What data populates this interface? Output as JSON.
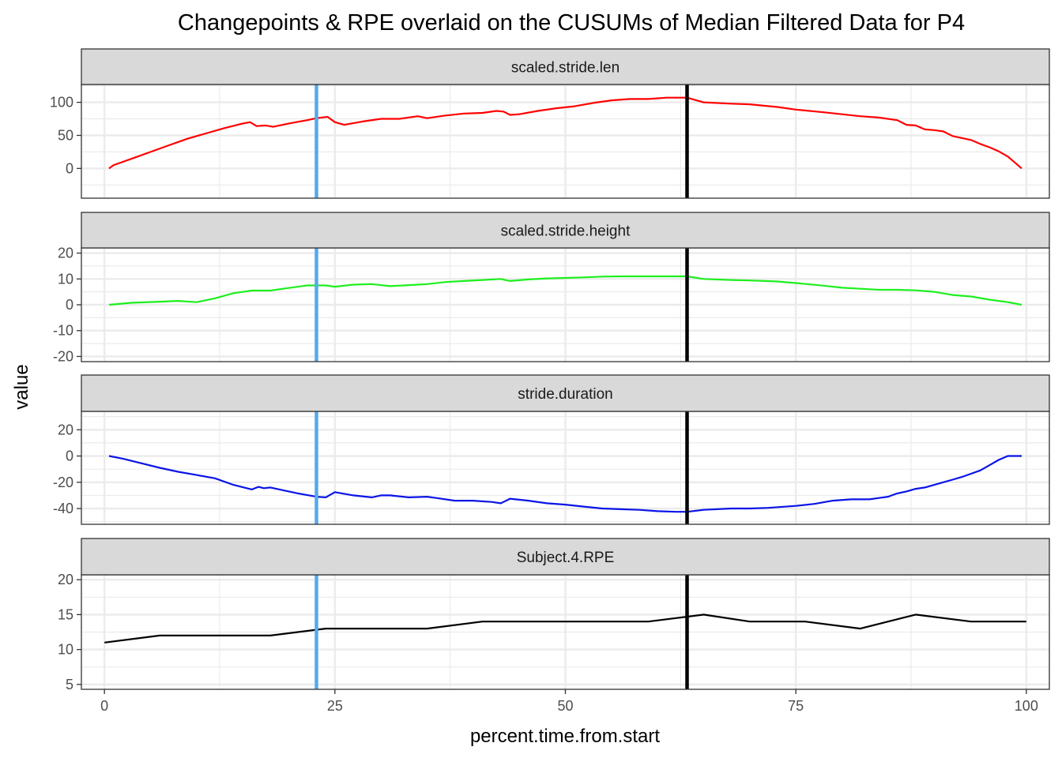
{
  "chart_data": {
    "type": "line",
    "title": "Changepoints & RPE overlaid on the CUSUMs of Median Filtered Data for P4",
    "xlabel": "percent.time.from.start",
    "ylabel": "value",
    "xlim": [
      -2.5,
      102.5
    ],
    "x_ticks": [
      0,
      25,
      50,
      75,
      100
    ],
    "x_tick_labels": [
      "0",
      "25",
      "50",
      "75",
      "100"
    ],
    "grid": true,
    "changepoints": [
      {
        "x": 23.0,
        "color": "#56a9ee"
      },
      {
        "x": 63.2,
        "color": "#000000"
      }
    ],
    "panels": [
      {
        "strip": "scaled.stride.len",
        "color": "#ff0000",
        "ylim": [
          -45,
          127
        ],
        "y_ticks": [
          0,
          50,
          100
        ],
        "y_tick_labels": [
          "0",
          "50",
          "100"
        ],
        "x": [
          0.5,
          1,
          3,
          5,
          7,
          9,
          11,
          13,
          15,
          15.8,
          16.5,
          17.5,
          18.3,
          20,
          22,
          23,
          24.2,
          25,
          26,
          28,
          30,
          32,
          34,
          35,
          37,
          39,
          41,
          42.5,
          43.3,
          44,
          45,
          47,
          49,
          51,
          53,
          55,
          57,
          59,
          61,
          62.5,
          63.2,
          65,
          68,
          70,
          73,
          75,
          78,
          80,
          82,
          84,
          86,
          87,
          88,
          89,
          90,
          91,
          92,
          93,
          94,
          95,
          96,
          97,
          98,
          99.5
        ],
        "y": [
          0,
          5,
          15,
          25,
          35,
          45,
          53,
          61,
          68,
          70,
          64,
          65,
          63,
          68,
          73,
          76,
          78,
          70,
          66,
          71,
          75,
          75,
          79,
          76,
          80,
          83,
          84,
          87,
          86,
          81,
          82,
          87,
          91,
          94,
          99,
          103,
          105,
          105,
          107,
          107,
          107,
          100,
          98,
          97,
          93,
          89,
          85,
          82,
          79,
          77,
          73,
          66,
          65,
          59,
          58,
          56,
          49,
          46,
          43,
          37,
          32,
          26,
          18,
          0
        ]
      },
      {
        "strip": "scaled.stride.height",
        "color": "#1eef1e",
        "ylim": [
          -22,
          22
        ],
        "y_ticks": [
          -20,
          -10,
          0,
          10,
          20
        ],
        "y_tick_labels": [
          "-20",
          "-10",
          "0",
          "10",
          "20"
        ],
        "x": [
          0.5,
          3,
          6,
          8,
          10,
          12,
          14,
          16,
          18,
          20,
          22,
          24,
          25,
          27,
          29,
          31,
          33,
          35,
          37,
          39,
          41,
          43,
          44,
          46,
          48,
          50,
          52,
          54,
          56,
          58,
          60,
          62,
          63.2,
          65,
          68,
          70,
          73,
          75,
          78,
          80,
          82,
          84,
          86,
          88,
          90,
          92,
          94,
          96,
          98,
          99.5
        ],
        "y": [
          0,
          0.8,
          1.2,
          1.5,
          1,
          2.5,
          4.5,
          5.5,
          5.5,
          6.5,
          7.5,
          7.5,
          7,
          7.8,
          8,
          7.2,
          7.6,
          8,
          8.8,
          9.2,
          9.6,
          10,
          9.2,
          9.8,
          10.2,
          10.4,
          10.6,
          10.9,
          11,
          11,
          11,
          11,
          11,
          10,
          9.6,
          9.4,
          9,
          8.4,
          7.4,
          6.6,
          6.2,
          5.8,
          5.8,
          5.6,
          5,
          3.8,
          3.2,
          2,
          1,
          0
        ]
      },
      {
        "strip": "stride.duration",
        "color": "#0a14e6",
        "ylim": [
          -52,
          34
        ],
        "y_ticks": [
          -40,
          -20,
          0,
          20
        ],
        "y_tick_labels": [
          "-40",
          "-20",
          "0",
          "20"
        ],
        "x": [
          0.5,
          2,
          4,
          6,
          8,
          10,
          12,
          14,
          16,
          16.7,
          17.3,
          18,
          19,
          21,
          23,
          24,
          25,
          27,
          29,
          30,
          31,
          33,
          35,
          36,
          38,
          40,
          42,
          43,
          44,
          46,
          48,
          50,
          52,
          54,
          56,
          58,
          60,
          62,
          63.2,
          65,
          68,
          70,
          72,
          75,
          77,
          79,
          81,
          83,
          84,
          85,
          86,
          87,
          88,
          89,
          90,
          91,
          92,
          93,
          94,
          95,
          96,
          97,
          98,
          99.5
        ],
        "y": [
          0,
          -2,
          -5.5,
          -9,
          -12,
          -14.5,
          -17,
          -22,
          -25.5,
          -23.5,
          -24.5,
          -24,
          -25.5,
          -28.5,
          -31,
          -31.5,
          -27.5,
          -30,
          -31.5,
          -30,
          -30,
          -31.5,
          -31,
          -32,
          -34,
          -34,
          -35,
          -36,
          -32.5,
          -34,
          -36,
          -37,
          -38.5,
          -40,
          -40.5,
          -41,
          -42,
          -42.5,
          -42.5,
          -41,
          -40,
          -40,
          -39.5,
          -38,
          -36.5,
          -34,
          -33,
          -33,
          -32,
          -31,
          -28.5,
          -27,
          -25,
          -24,
          -22,
          -20,
          -18,
          -16,
          -13.5,
          -11,
          -7,
          -3,
          0,
          0
        ]
      },
      {
        "strip": "Subject.4.RPE",
        "color": "#000000",
        "ylim": [
          4.3,
          20.7
        ],
        "y_ticks": [
          5,
          10,
          15,
          20
        ],
        "y_tick_labels": [
          "5",
          "10",
          "15",
          "20"
        ],
        "x": [
          0,
          6,
          12,
          18,
          24,
          30,
          35,
          41,
          47,
          53,
          59,
          65,
          70,
          76,
          82,
          88,
          94,
          100
        ],
        "y": [
          11,
          12,
          12,
          12,
          13,
          13,
          13,
          14,
          14,
          14,
          14,
          15,
          14,
          14,
          13,
          15,
          14,
          14
        ]
      }
    ]
  }
}
